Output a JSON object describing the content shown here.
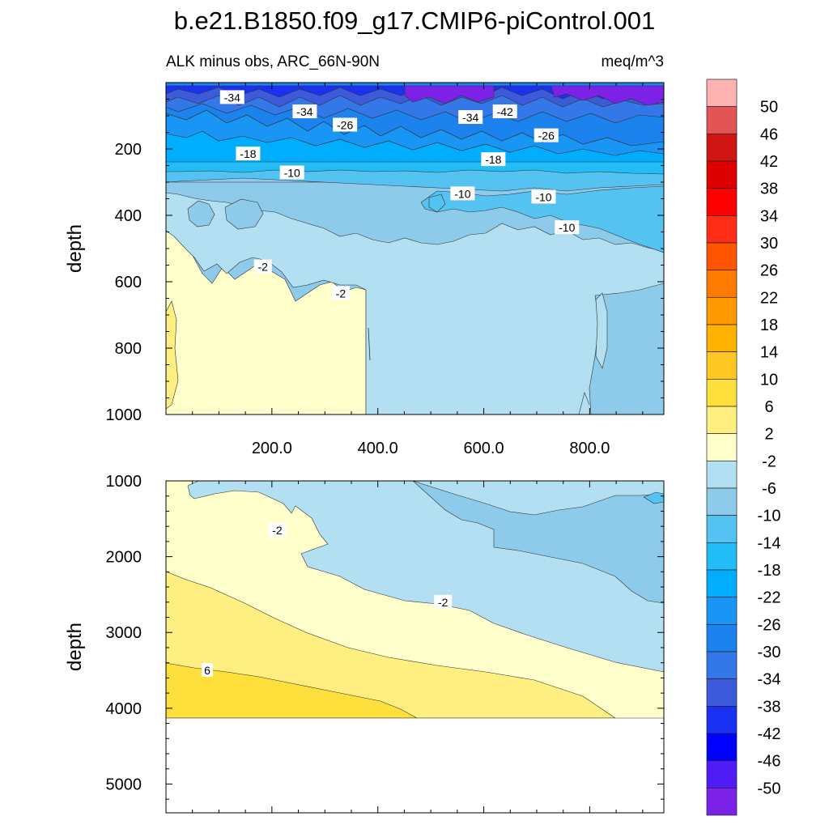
{
  "title": "b.e21.B1850.f09_g17.CMIP6-piControl.001",
  "subtitle_left": "ALK minus obs, ARC_66N-90N",
  "subtitle_right": "meq/m^3",
  "chart_data": [
    {
      "type": "contour",
      "panel": "upper",
      "ylabel": "depth",
      "ylim": [
        1000,
        0
      ],
      "yticks": [
        200,
        400,
        600,
        800,
        1000
      ],
      "xlim": [
        0,
        940
      ],
      "xticks": [
        200.0,
        400.0,
        600.0,
        800.0
      ],
      "xtick_labels": [
        "200.0",
        "400.0",
        "600.0",
        "800.0"
      ],
      "contour_labels": [
        {
          "text": "-34",
          "x": 125,
          "y": 45
        },
        {
          "text": "-34",
          "x": 262,
          "y": 88
        },
        {
          "text": "-26",
          "x": 338,
          "y": 128
        },
        {
          "text": "-34",
          "x": 575,
          "y": 105
        },
        {
          "text": "-42",
          "x": 640,
          "y": 88
        },
        {
          "text": "-26",
          "x": 718,
          "y": 160
        },
        {
          "text": "-18",
          "x": 155,
          "y": 215
        },
        {
          "text": "-18",
          "x": 618,
          "y": 232
        },
        {
          "text": "-10",
          "x": 238,
          "y": 272
        },
        {
          "text": "-10",
          "x": 560,
          "y": 335
        },
        {
          "text": "-10",
          "x": 713,
          "y": 345
        },
        {
          "text": "-10",
          "x": 757,
          "y": 437
        },
        {
          "text": "-2",
          "x": 183,
          "y": 555
        },
        {
          "text": "-2",
          "x": 330,
          "y": 635
        }
      ]
    },
    {
      "type": "contour",
      "panel": "lower",
      "ylabel": "depth",
      "ylim": [
        5380,
        1000
      ],
      "yticks": [
        1000,
        2000,
        3000,
        4000,
        5000
      ],
      "xlim": [
        0,
        940
      ],
      "ocean_floor_depth": 4120,
      "contour_labels": [
        {
          "text": "-2",
          "x": 210,
          "y": 1650
        },
        {
          "text": "-2",
          "x": 523,
          "y": 2600
        },
        {
          "text": "6",
          "x": 78,
          "y": 3500
        }
      ]
    }
  ],
  "colorbar": {
    "labels": [
      "50",
      "46",
      "42",
      "38",
      "34",
      "30",
      "26",
      "22",
      "18",
      "14",
      "10",
      "6",
      "2",
      "-2",
      "-6",
      "-10",
      "-14",
      "-18",
      "-22",
      "-26",
      "-30",
      "-34",
      "-38",
      "-42",
      "-46",
      "-50"
    ],
    "colors": [
      "#ffb2b2",
      "#e35454",
      "#d01515",
      "#dc0000",
      "#ff0000",
      "#ff2d15",
      "#ff5500",
      "#ff7a00",
      "#ff9900",
      "#ffb100",
      "#ffc721",
      "#ffdf3b",
      "#ffef80",
      "#ffffcc",
      "#b3dff3",
      "#8ecbeb",
      "#55c3f2",
      "#22bdf6",
      "#00adff",
      "#1996f5",
      "#1b82ee",
      "#3477e8",
      "#3c5ad9",
      "#1a30f2",
      "#0000ff",
      "#4f1cf6",
      "#7c22e8"
    ]
  }
}
